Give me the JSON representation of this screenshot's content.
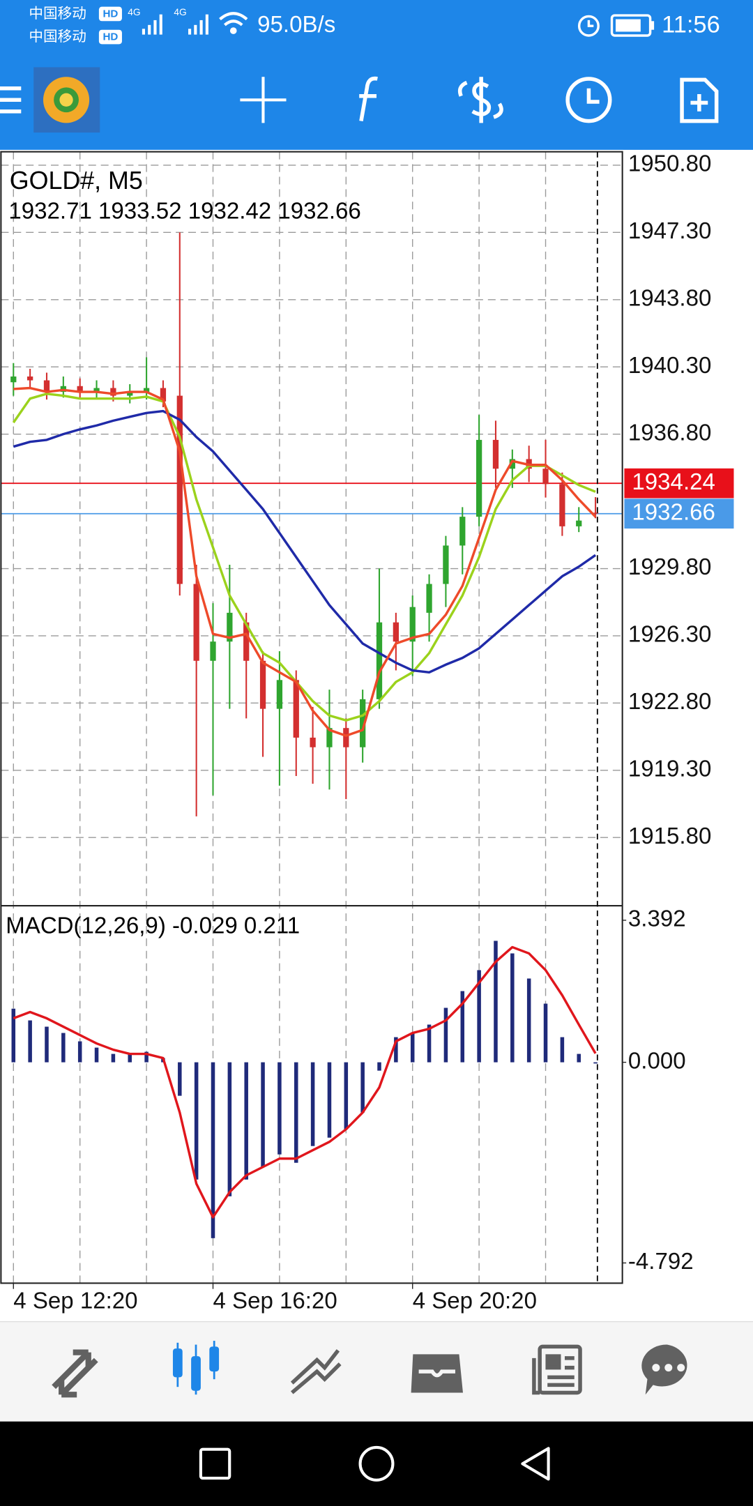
{
  "status_bar": {
    "sims": [
      {
        "carrier": "中国移动",
        "badge": "HD",
        "network": "4G"
      },
      {
        "carrier": "中国移动",
        "badge": "HD",
        "network": "4G"
      }
    ],
    "speed": "95.0B/s",
    "time": "11:56"
  },
  "chart_data": [
    {
      "type": "candlestick",
      "title": "GOLD#, M5",
      "categories": [
        "4 Sep 12:20",
        null,
        null,
        null,
        null,
        null,
        null,
        null,
        null,
        null,
        null,
        null,
        "4 Sep 16:20",
        null,
        null,
        null,
        null,
        null,
        null,
        null,
        null,
        null,
        null,
        null,
        "4 Sep 20:20",
        null,
        null,
        null,
        null,
        null,
        null,
        null,
        null,
        null,
        null,
        null
      ],
      "ohlc": {
        "open": [
          1939.5,
          1939.8,
          1939.6,
          1939.0,
          1939.3,
          1939.0,
          1939.2,
          1938.8,
          1939.0,
          1939.2,
          1938.8,
          1929.0,
          1925.0,
          1926.0,
          1927.0,
          1925.0,
          1922.5,
          1924.0,
          1921.0,
          1920.5,
          1921.5,
          1920.5,
          1923.0,
          1927.0,
          1926.0,
          1927.5,
          1929.0,
          1931.0,
          1932.5,
          1936.5,
          1935.0,
          1935.5,
          1935.0,
          1934.2,
          1932.0,
          1932.71
        ],
        "high": [
          1940.5,
          1940.2,
          1940.0,
          1939.8,
          1939.7,
          1939.6,
          1939.6,
          1939.4,
          1940.8,
          1939.6,
          1947.3,
          1930.0,
          1928.0,
          1930.0,
          1927.5,
          1925.5,
          1925.5,
          1924.5,
          1922.6,
          1923.5,
          1922.0,
          1923.5,
          1929.8,
          1927.5,
          1928.4,
          1929.5,
          1931.5,
          1933.0,
          1937.8,
          1937.5,
          1936.0,
          1936.2,
          1936.5,
          1934.8,
          1933.0,
          1933.52
        ],
        "low": [
          1938.8,
          1939.2,
          1938.6,
          1938.7,
          1938.6,
          1938.7,
          1938.5,
          1938.4,
          1938.6,
          1938.2,
          1928.4,
          1916.9,
          1918.0,
          1922.5,
          1922.0,
          1920.0,
          1918.5,
          1919.0,
          1918.6,
          1918.3,
          1917.8,
          1919.7,
          1922.5,
          1924.5,
          1924.2,
          1926.0,
          1927.8,
          1929.5,
          1932.0,
          1934.0,
          1934.0,
          1934.3,
          1933.5,
          1931.5,
          1931.7,
          1932.42
        ],
        "close": [
          1939.8,
          1939.6,
          1939.0,
          1939.3,
          1939.0,
          1939.2,
          1938.8,
          1939.0,
          1939.2,
          1938.5,
          1929.0,
          1925.0,
          1926.0,
          1927.5,
          1925.0,
          1922.5,
          1924.0,
          1921.0,
          1920.5,
          1921.5,
          1920.5,
          1923.0,
          1927.0,
          1926.0,
          1927.8,
          1929.0,
          1931.0,
          1932.5,
          1936.5,
          1935.0,
          1935.5,
          1935.0,
          1934.2,
          1932.0,
          1932.3,
          1932.66
        ]
      },
      "up_color": "#2fa52f",
      "down_color": "#d32f2f",
      "overlays": [
        {
          "color": "#9bd21c",
          "values": [
            1937.4,
            1938.65,
            1938.9,
            1938.8,
            1938.65,
            1938.65,
            1938.65,
            1938.65,
            1938.75,
            1938.5,
            1936.65,
            1933.4,
            1930.9,
            1928.4,
            1926.9,
            1925.4,
            1924.9,
            1923.9,
            1922.9,
            1922.15,
            1921.9,
            1922.15,
            1922.9,
            1923.9,
            1924.4,
            1925.4,
            1926.9,
            1928.4,
            1930.4,
            1932.9,
            1934.4,
            1935.15,
            1935.15,
            1934.65,
            1934.15,
            1933.8
          ]
        },
        {
          "color": "#1f2aa8",
          "values": [
            1936.15,
            1936.4,
            1936.5,
            1936.8,
            1937.05,
            1937.25,
            1937.5,
            1937.7,
            1937.9,
            1938.0,
            1937.55,
            1936.65,
            1935.9,
            1934.9,
            1933.9,
            1932.9,
            1931.65,
            1930.4,
            1929.15,
            1927.9,
            1926.9,
            1925.9,
            1925.4,
            1924.9,
            1924.5,
            1924.4,
            1924.8,
            1925.15,
            1925.65,
            1926.4,
            1927.15,
            1927.9,
            1928.65,
            1929.4,
            1929.9,
            1930.5
          ]
        },
        {
          "color": "#ee4a2a",
          "values": [
            1939.15,
            1939.2,
            1939.0,
            1939.1,
            1939.0,
            1939.0,
            1938.9,
            1939.0,
            1939.0,
            1938.6,
            1935.9,
            1929.4,
            1926.4,
            1926.2,
            1926.4,
            1924.9,
            1924.4,
            1923.9,
            1922.4,
            1921.4,
            1921.1,
            1921.4,
            1924.4,
            1925.9,
            1926.2,
            1926.4,
            1927.4,
            1928.9,
            1931.4,
            1933.9,
            1935.4,
            1935.2,
            1935.2,
            1934.4,
            1933.4,
            1932.5
          ]
        }
      ],
      "price_lines": [
        {
          "value": 1934.24,
          "color": "#e8101a"
        },
        {
          "value": 1932.66,
          "color": "#4a9ae8"
        }
      ],
      "ylim": [
        1912.3,
        1951.5
      ],
      "yticks": [
        {
          "value": 1950.8,
          "label": "1950.80"
        },
        {
          "value": 1947.3,
          "label": "1947.30"
        },
        {
          "value": 1943.8,
          "label": "1943.80"
        },
        {
          "value": 1940.3,
          "label": "1940.30"
        },
        {
          "value": 1936.8,
          "label": "1936.80"
        },
        {
          "value": 1929.8,
          "label": "1929.80"
        },
        {
          "value": 1926.3,
          "label": "1926.30"
        },
        {
          "value": 1922.8,
          "label": "1922.80"
        },
        {
          "value": 1919.3,
          "label": "1919.30"
        },
        {
          "value": 1915.8,
          "label": "1915.80"
        }
      ],
      "grid": true
    },
    {
      "type": "macd",
      "title": "MACD(12,26,9)",
      "series": [
        {
          "type": "bar",
          "color": "#1f2a7a",
          "values": [
            1.28,
            1.0,
            0.85,
            0.7,
            0.5,
            0.35,
            0.2,
            0.2,
            0.25,
            0.1,
            -0.8,
            -2.8,
            -4.2,
            -3.2,
            -2.8,
            -2.5,
            -2.2,
            -2.4,
            -2.0,
            -1.8,
            -1.6,
            -1.2,
            -0.2,
            0.6,
            0.7,
            0.9,
            1.3,
            1.7,
            2.2,
            2.9,
            2.6,
            2.0,
            1.4,
            0.6,
            0.2,
            -0.029
          ]
        },
        {
          "type": "line",
          "color": "#e0161c",
          "values": [
            1.05,
            1.2,
            1.05,
            0.85,
            0.65,
            0.45,
            0.3,
            0.2,
            0.2,
            0.1,
            -1.2,
            -2.9,
            -3.7,
            -3.1,
            -2.7,
            -2.5,
            -2.3,
            -2.3,
            -2.1,
            -1.9,
            -1.6,
            -1.2,
            -0.6,
            0.5,
            0.7,
            0.8,
            1.0,
            1.4,
            1.9,
            2.4,
            2.75,
            2.6,
            2.2,
            1.6,
            0.9,
            0.211
          ]
        }
      ],
      "ylim": [
        -5.275,
        3.716
      ],
      "yticks": [
        3.392,
        {
          "value": 0,
          "label": "0.000"
        },
        -4.792
      ],
      "grid": true
    }
  ]
}
